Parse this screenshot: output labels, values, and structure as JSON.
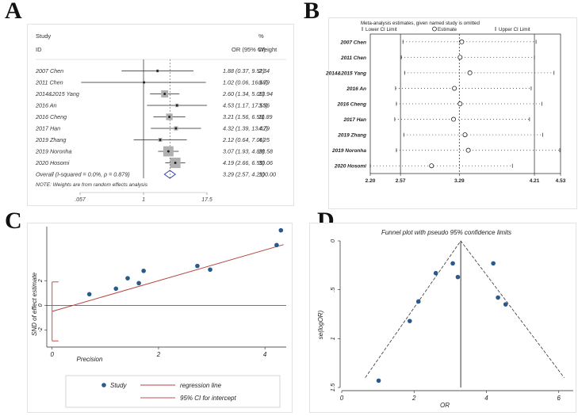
{
  "panel_labels": [
    "A",
    "B",
    "C",
    "D"
  ],
  "chart_data": [
    {
      "panel": "A",
      "type": "forest",
      "header": {
        "study": "Study",
        "id": "ID",
        "or_ci": "OR (95% CI)",
        "pct": "%",
        "weight": "Weight"
      },
      "studies": [
        {
          "name": "2007 Chen",
          "or": 1.88,
          "lo": 0.37,
          "hi": 9.52,
          "ci": "1.88 (0.37, 9.52)",
          "weight": "2.34"
        },
        {
          "name": "2011 Chen",
          "or": 1.02,
          "lo": 0.06,
          "hi": 16.68,
          "ci": "1.02 (0.06, 16.68)",
          "weight": "0.79"
        },
        {
          "name": "2014&2015 Yang",
          "or": 2.6,
          "lo": 1.34,
          "hi": 5.05,
          "ci": "2.60 (1.34, 5.05)",
          "weight": "13.94"
        },
        {
          "name": "2016 An",
          "or": 4.53,
          "lo": 1.17,
          "hi": 17.55,
          "ci": "4.53 (1.17, 17.55)",
          "weight": "3.36"
        },
        {
          "name": "2016 Cheng",
          "or": 3.21,
          "lo": 1.56,
          "hi": 6.58,
          "ci": "3.21 (1.56, 6.58)",
          "weight": "11.89"
        },
        {
          "name": "2017 Han",
          "or": 4.32,
          "lo": 1.39,
          "hi": 13.42,
          "ci": "4.32 (1.39, 13.42)",
          "weight": "4.79"
        },
        {
          "name": "2019 Zhang",
          "or": 2.12,
          "lo": 0.64,
          "hi": 7.05,
          "ci": "2.12 (0.64, 7.05)",
          "weight": "4.25"
        },
        {
          "name": "2019 Noronha",
          "or": 3.07,
          "lo": 1.93,
          "hi": 4.89,
          "ci": "3.07 (1.93, 4.89)",
          "weight": "28.58"
        },
        {
          "name": "2020 Hosomi",
          "or": 4.19,
          "lo": 2.66,
          "hi": 6.59,
          "ci": "4.19 (2.66, 6.59)",
          "weight": "30.06"
        }
      ],
      "overall": {
        "name": "Overall  (I-squared = 0.0%, p = 0.879)",
        "or": 3.29,
        "lo": 2.57,
        "hi": 4.21,
        "ci": "3.29 (2.57, 4.21)",
        "weight": "100.00"
      },
      "note": "NOTE: Weights are from random effects analysis",
      "xticks": [
        {
          "v": 0.057,
          "label": ".057"
        },
        {
          "v": 1,
          "label": "1"
        },
        {
          "v": 17.5,
          "label": "17.5"
        }
      ],
      "xscale": "log"
    },
    {
      "panel": "B",
      "type": "influence",
      "title": "Meta-analysis estimates, given named study is omitted",
      "legend": [
        "Lower CI Limit",
        "Estimate",
        "Upper CI Limit"
      ],
      "omitted": [
        {
          "name": "2007 Chen",
          "est": 3.32,
          "lo": 2.6,
          "hi": 4.23
        },
        {
          "name": "2011 Chen",
          "est": 3.3,
          "lo": 2.58,
          "hi": 4.21
        },
        {
          "name": "2014&2015 Yang",
          "est": 3.42,
          "lo": 2.62,
          "hi": 4.45
        },
        {
          "name": "2016 An",
          "est": 3.23,
          "lo": 2.51,
          "hi": 4.17
        },
        {
          "name": "2016 Cheng",
          "est": 3.3,
          "lo": 2.52,
          "hi": 4.3
        },
        {
          "name": "2017 Han",
          "est": 3.22,
          "lo": 2.5,
          "hi": 4.15
        },
        {
          "name": "2019 Zhang",
          "est": 3.36,
          "lo": 2.61,
          "hi": 4.31
        },
        {
          "name": "2019 Noronha",
          "est": 3.4,
          "lo": 2.52,
          "hi": 4.52
        },
        {
          "name": "2020 Hosomi",
          "est": 2.95,
          "lo": 2.2,
          "hi": 3.94
        }
      ],
      "xticks": [
        "2.20",
        "2.57",
        "3.29",
        "4.21",
        "4.53"
      ],
      "xtick_values": [
        2.2,
        2.57,
        3.29,
        4.21,
        4.53
      ],
      "xlim": [
        2.2,
        4.53
      ]
    },
    {
      "panel": "C",
      "type": "scatter",
      "ylabel": "SND of effect estimate",
      "xlabel": "Precision",
      "x": [
        0.7,
        1.2,
        1.42,
        1.63,
        1.72,
        2.73,
        2.97,
        4.22,
        4.3
      ],
      "y": [
        0.9,
        1.35,
        2.2,
        1.8,
        2.8,
        3.2,
        2.9,
        4.9,
        6.1
      ],
      "regression": {
        "intercept": -0.5,
        "slope": 1.25
      },
      "ci_intercept": [
        -2.9,
        1.9
      ],
      "xticks": [
        "0",
        "2",
        "4"
      ],
      "yticks": [
        "2",
        "0",
        "-2"
      ],
      "xlim": [
        -0.1,
        4.4
      ],
      "ylim": [
        -3.4,
        6.4
      ],
      "legend": [
        "Study",
        "regression line",
        "95% CI for intercept"
      ]
    },
    {
      "panel": "D",
      "type": "scatter",
      "title": "Funnel plot with pseudo 95% confidence limits",
      "xlabel": "OR",
      "ylabel": "se(logOR)",
      "x": [
        1.02,
        1.88,
        2.12,
        2.6,
        3.07,
        3.21,
        4.19,
        4.32,
        4.53
      ],
      "y": [
        1.43,
        0.82,
        0.62,
        0.33,
        0.23,
        0.37,
        0.23,
        0.58,
        0.65
      ],
      "pooled": 3.29,
      "xticks": [
        "0",
        "2",
        "4",
        "6"
      ],
      "yticks": [
        "0",
        ".5",
        "1",
        "1.5"
      ],
      "xlim": [
        0,
        6.4
      ],
      "ylim": [
        0,
        1.5
      ]
    }
  ]
}
